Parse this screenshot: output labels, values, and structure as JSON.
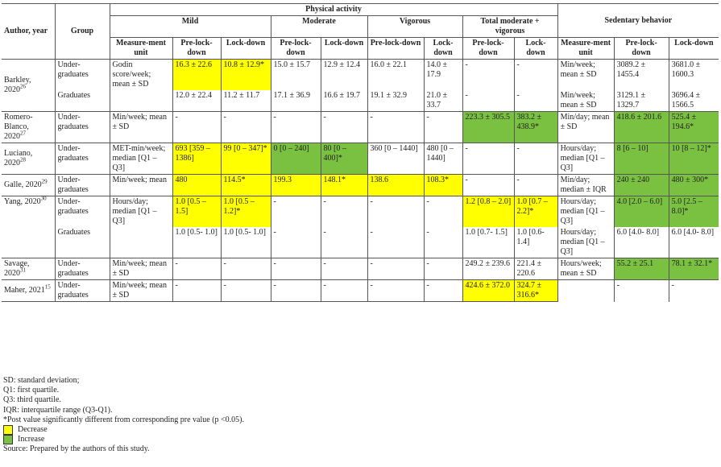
{
  "headers": {
    "author_year": "Author, year",
    "group": "Group",
    "physical_activity": "Physical activity",
    "sedentary_behavior": "Sedentary behavior",
    "mild": "Mild",
    "moderate": "Moderate",
    "vigorous": "Vigorous",
    "total": "Total moderate + vigorous",
    "measurement_unit": "Measure-ment unit",
    "pre_lockdown": "Pre-lock-down",
    "lockdown": "Lock-down"
  },
  "rows": [
    {
      "author": "Barkley, 2020",
      "ref": "26",
      "group": "Under-graduates",
      "unit": "Godin score/week; mean ± SD",
      "mild_pre": "16.3 ± 22.6",
      "mild_lock": "10.8 ± 12.9*",
      "mod_pre": "15.0 ± 15.7",
      "mod_lock": "12.9 ± 12.4",
      "vig_pre": "16.0 ± 22.1",
      "vig_lock": "14.0 ± 17.9",
      "tot_pre": "-",
      "tot_lock": "-",
      "sed_unit": "Min/week; mean ± SD",
      "sed_pre": "3089.2 ± 1455.4",
      "sed_lock": "3681.0 ± 1600.3"
    },
    {
      "group": "Graduates",
      "unit": "",
      "mild_pre": "12.0 ± 22.4",
      "mild_lock": "11.2 ± 11.7",
      "mod_pre": "17.1 ± 36.9",
      "mod_lock": "16.6 ± 19.7",
      "vig_pre": "19.1 ± 32.9",
      "vig_lock": "21.0 ± 33.7",
      "tot_pre": "-",
      "tot_lock": "-",
      "sed_unit": "Min/week; mean ± SD",
      "sed_pre": "3129.1 ± 1329.7",
      "sed_lock": "3696.4 ± 1566.5"
    },
    {
      "author": "Romero-Blanco, 2020",
      "ref": "27",
      "group": "Under-graduates",
      "unit": "Min/week; mean ± SD",
      "mild_pre": "-",
      "mild_lock": "-",
      "mod_pre": "-",
      "mod_lock": "-",
      "vig_pre": "-",
      "vig_lock": "-",
      "tot_pre": "223.3 ± 305.5",
      "tot_lock": "383.2 ± 438.9*",
      "sed_unit": "Min/day; mean ± SD",
      "sed_pre": "418.6 ± 201.6",
      "sed_lock": "525.4 ± 194.6*"
    },
    {
      "author": "Luciano, 2020",
      "ref": "28",
      "group": "Under-graduates",
      "unit": "MET-min/week; median [Q1 – Q3]",
      "mild_pre": "693 [359 – 1386]",
      "mild_lock": "99 [0 – 347]*",
      "mod_pre": "0 [0 – 240]",
      "mod_lock": "80 [0 – 400]*",
      "vig_pre": "360 [0 – 1440]",
      "vig_lock": "480 [0 –1440]",
      "tot_pre": "-",
      "tot_lock": "-",
      "sed_unit": "Hours/day; median [Q1 – Q3]",
      "sed_pre": "8 [6 – 10]",
      "sed_lock": "10 [8 – 12]*"
    },
    {
      "author": "Galle, 2020",
      "ref": "29",
      "group": "Under-graduates",
      "unit": "Min/week; mean",
      "mild_pre": "480",
      "mild_lock": "114.5*",
      "mod_pre": "199.3",
      "mod_lock": "148.1*",
      "vig_pre": "138.6",
      "vig_lock": "108.3*",
      "tot_pre": "-",
      "tot_lock": "-",
      "sed_unit": "Min/day; median ± IQR",
      "sed_pre": "240 ± 240",
      "sed_lock": "480 ± 300*"
    },
    {
      "author": "Yang, 2020",
      "ref": "30",
      "group": "Under-graduates",
      "unit": "Hours/day; median [Q1 – Q3]",
      "mild_pre": "1.0 [0.5 – 1.5]",
      "mild_lock": "1.0 [0.5 – 1.2]*",
      "mod_pre": "-",
      "mod_lock": "-",
      "vig_pre": "-",
      "vig_lock": "-",
      "tot_pre": "1.2 [0.8 – 2.0]",
      "tot_lock": "1.0 [0.7 – 2.2]*",
      "sed_unit": "Hours/day; median [Q1 – Q3]",
      "sed_pre": "4.0 [2.0 – 6.0]",
      "sed_lock": "5.0 [2.5 – 8.0]*"
    },
    {
      "group": "Graduates",
      "unit": "",
      "mild_pre": "1.0 [0.5- 1.0]",
      "mild_lock": "1.0 [0.5- 1.0]",
      "mod_pre": "-",
      "mod_lock": "-",
      "vig_pre": "-",
      "vig_lock": "-",
      "tot_pre": "1.0 [0.7- 1.5]",
      "tot_lock": "1.0 [0.6- 1.4]",
      "sed_unit": "Hours/day; median [Q1 – Q3]",
      "sed_pre": "6.0 [4.0- 8.0]",
      "sed_lock": "6.0 [4.0- 8.0]"
    },
    {
      "author": "Savage, 2020",
      "ref": "31",
      "group": "Under-graduates",
      "unit": "Min/week; mean ± SD",
      "mild_pre": "-",
      "mild_lock": "-",
      "mod_pre": "-",
      "mod_lock": "-",
      "vig_pre": "-",
      "vig_lock": "-",
      "tot_pre": "249.2 ± 239.6",
      "tot_lock": "221.4 ± 220.6",
      "sed_unit": "Hours/week; mean ± SD",
      "sed_pre": "55.2 ± 25.1",
      "sed_lock": "78.1 ± 32.1*"
    },
    {
      "author": "Maher, 2021",
      "ref": "15",
      "group": "Under-graduates",
      "unit": "Min/week; mean ± SD",
      "mild_pre": "-",
      "mild_lock": "-",
      "mod_pre": "-",
      "mod_lock": "-",
      "vig_pre": "-",
      "vig_lock": "-",
      "tot_pre": "424.6 ± 372.0",
      "tot_lock": "324.7 ± 316.6*",
      "sed_unit": "",
      "sed_pre": "-",
      "sed_lock": "-"
    }
  ],
  "footnotes": {
    "sd": "SD: standard deviation;",
    "q1": "Q1: first quartile.",
    "q3": "Q3: third quartile.",
    "iqr": "IQR: interquartile range (Q3-Q1).",
    "post": "*Post value significantly different from corresponding pre value (p <0.05).",
    "decrease": "Decrease",
    "increase": "Increase",
    "source": "Source: Prepared by the authors of this study."
  },
  "colors": {
    "decrease": "#ffff00",
    "increase": "#7ac142"
  }
}
